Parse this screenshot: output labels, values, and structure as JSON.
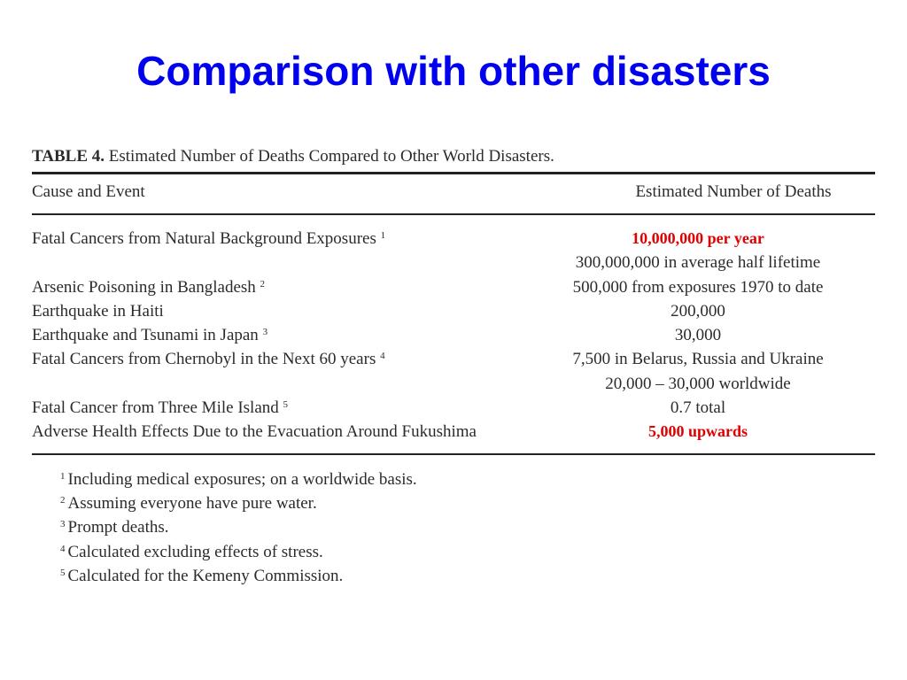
{
  "slide": {
    "title": "Comparison with other disasters"
  },
  "table": {
    "caption_label": "TABLE 4.",
    "caption_text": "Estimated Number of Deaths Compared to Other World Disasters.",
    "header": {
      "cause": "Cause and Event",
      "deaths": "Estimated Number of Deaths"
    },
    "rows": [
      {
        "cause": "Fatal Cancers from Natural Background Exposures",
        "note": "1",
        "deaths": "10,000,000 per year",
        "deaths2": "300,000,000 in average half lifetime"
      },
      {
        "cause": "Arsenic Poisoning in Bangladesh",
        "note": "2",
        "deaths": "500,000 from exposures 1970 to date"
      },
      {
        "cause": "Earthquake in Haiti",
        "deaths": "200,000"
      },
      {
        "cause": "Earthquake and Tsunami in Japan",
        "note": "3",
        "deaths": "30,000"
      },
      {
        "cause": "Fatal Cancers from Chernobyl in the Next 60 years",
        "note": "4",
        "deaths": "7,500 in Belarus, Russia and Ukraine",
        "deaths2": "20,000 – 30,000 worldwide"
      },
      {
        "cause": "Fatal Cancer from Three Mile Island",
        "note": "5",
        "deaths": "0.7 total"
      },
      {
        "cause": "Adverse Health Effects Due to the Evacuation Around Fukushima",
        "deaths": "5,000 upwards"
      }
    ],
    "footnotes": [
      {
        "mark": "1",
        "text": "Including medical exposures; on a worldwide basis."
      },
      {
        "mark": "2",
        "text": "Assuming everyone have pure water."
      },
      {
        "mark": "3",
        "text": "Prompt deaths."
      },
      {
        "mark": "4",
        "text": "Calculated excluding effects of stress."
      },
      {
        "mark": "5",
        "text": "Calculated for the Kemeny Commission."
      }
    ]
  },
  "colors": {
    "title": "#0000ee",
    "highlight": "#e00000",
    "text": "#2b2b2b"
  }
}
